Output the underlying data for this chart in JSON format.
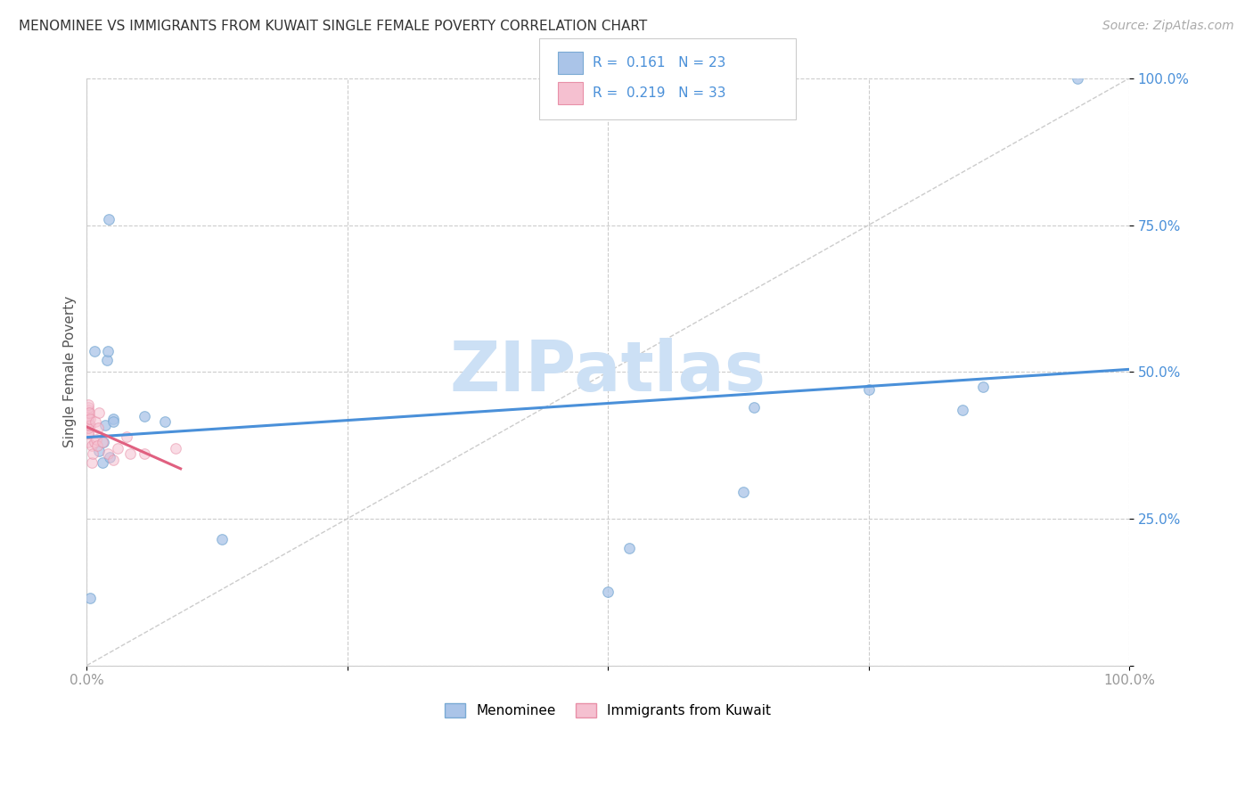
{
  "title": "MENOMINEE VS IMMIGRANTS FROM KUWAIT SINGLE FEMALE POVERTY CORRELATION CHART",
  "source": "Source: ZipAtlas.com",
  "ylabel": "Single Female Poverty",
  "xlim": [
    0,
    1.0
  ],
  "ylim": [
    0,
    1.0
  ],
  "menominee_color": "#aac4e8",
  "menominee_edge_color": "#7aaad4",
  "kuwait_color": "#f5c0d0",
  "kuwait_edge_color": "#e890a8",
  "trendline_menominee_color": "#4a90d9",
  "trendline_kuwait_color": "#e06080",
  "diagonal_color": "#cccccc",
  "grid_color": "#cccccc",
  "legend_R_color": "#4a90d9",
  "watermark_color": "#cce0f5",
  "R_menominee": 0.161,
  "N_menominee": 23,
  "R_kuwait": 0.219,
  "N_kuwait": 33,
  "menominee_x": [
    0.003,
    0.007,
    0.012,
    0.015,
    0.016,
    0.018,
    0.019,
    0.02,
    0.021,
    0.022,
    0.025,
    0.025,
    0.055,
    0.075,
    0.13,
    0.5,
    0.52,
    0.63,
    0.64,
    0.75,
    0.84,
    0.86,
    0.95
  ],
  "menominee_y": [
    0.115,
    0.535,
    0.365,
    0.345,
    0.38,
    0.41,
    0.52,
    0.535,
    0.76,
    0.355,
    0.42,
    0.415,
    0.425,
    0.415,
    0.215,
    0.125,
    0.2,
    0.295,
    0.44,
    0.47,
    0.435,
    0.475,
    1.0
  ],
  "kuwait_x": [
    0.001,
    0.001,
    0.001,
    0.001,
    0.001,
    0.001,
    0.001,
    0.001,
    0.001,
    0.001,
    0.001,
    0.001,
    0.001,
    0.002,
    0.003,
    0.003,
    0.005,
    0.005,
    0.006,
    0.007,
    0.008,
    0.009,
    0.01,
    0.011,
    0.012,
    0.015,
    0.02,
    0.025,
    0.03,
    0.038,
    0.042,
    0.055,
    0.085
  ],
  "kuwait_y": [
    0.38,
    0.395,
    0.395,
    0.405,
    0.41,
    0.415,
    0.42,
    0.425,
    0.425,
    0.43,
    0.435,
    0.44,
    0.445,
    0.43,
    0.41,
    0.42,
    0.345,
    0.375,
    0.36,
    0.38,
    0.415,
    0.385,
    0.375,
    0.405,
    0.43,
    0.38,
    0.36,
    0.35,
    0.37,
    0.39,
    0.36,
    0.36,
    0.37
  ],
  "marker_size": 70,
  "alpha_menominee": 0.75,
  "alpha_kuwait": 0.55
}
